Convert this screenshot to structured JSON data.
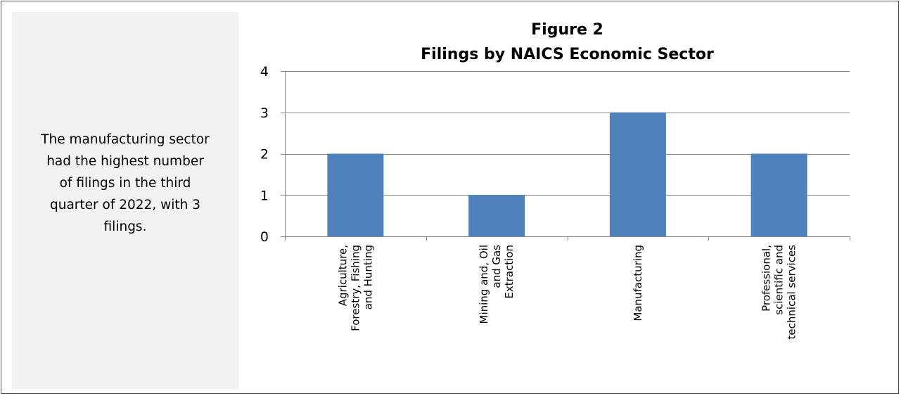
{
  "side_note": {
    "lines": [
      "The manufacturing sector",
      "had the highest number",
      "of filings in the third",
      "quarter of 2022, with 3",
      "filings."
    ]
  },
  "chart_data": {
    "type": "bar",
    "title": [
      "Figure 2",
      "Filings by NAICS Economic Sector"
    ],
    "categories": [
      [
        "Agriculture,",
        "Forestry, Fishing",
        "and Hunting"
      ],
      [
        "Mining and, Oil",
        "and Gas",
        "Extraction"
      ],
      [
        "Manufacturing"
      ],
      [
        "Professional,",
        "scientific and",
        "technical services"
      ]
    ],
    "values": [
      2,
      1,
      3,
      2
    ],
    "ylim": [
      0,
      4
    ],
    "yticks": [
      0,
      1,
      2,
      3,
      4
    ],
    "grid": true,
    "legend": false,
    "xlabel": "",
    "ylabel": "",
    "colors": {
      "bar": "#4f81bd",
      "grid": "#868686",
      "axis": "#868686"
    }
  }
}
